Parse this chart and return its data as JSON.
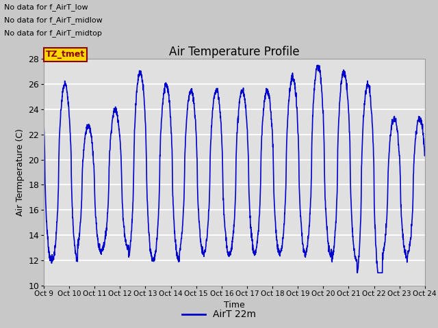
{
  "title": "Air Temperature Profile",
  "xlabel": "Time",
  "ylabel": "Air Termperature (C)",
  "ylim": [
    10,
    28
  ],
  "yticks": [
    10,
    12,
    14,
    16,
    18,
    20,
    22,
    24,
    26,
    28
  ],
  "line_color": "#0000CC",
  "line_width": 1.2,
  "fig_bg_color": "#C8C8C8",
  "plot_bg_color": "#E0E0E0",
  "grid_color": "#F0F0F0",
  "legend_label": "AirT 22m",
  "no_data_texts": [
    "No data for f_AirT_low",
    "No data for f_AirT_midlow",
    "No data for f_AirT_midtop"
  ],
  "tz_label": "TZ_tmet",
  "x_start": 9.0,
  "x_end": 24.0,
  "xtick_labels": [
    "Oct 9",
    "Oct 10",
    "Oct 11",
    "Oct 12",
    "Oct 13",
    "Oct 14",
    "Oct 15",
    "Oct 16",
    "Oct 17",
    "Oct 18",
    "Oct 19",
    "Oct 20",
    "Oct 21",
    "Oct 22",
    "Oct 23",
    "Oct 24"
  ],
  "xtick_positions": [
    9,
    10,
    11,
    12,
    13,
    14,
    15,
    16,
    17,
    18,
    19,
    20,
    21,
    22,
    23,
    24
  ]
}
